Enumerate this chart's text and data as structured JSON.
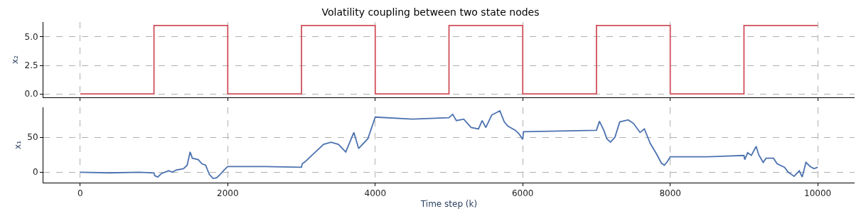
{
  "chart_data": [
    {
      "type": "step",
      "title": "Volatility coupling between two state nodes",
      "ylabel": "x₂",
      "x": [
        0,
        1000,
        2000,
        3000,
        4000,
        5000,
        6000,
        7000,
        8000,
        9000,
        10000
      ],
      "series": [
        {
          "color": "#d0505a",
          "values": [
            0,
            6,
            0,
            6,
            0,
            6,
            0,
            6,
            0,
            6,
            6
          ]
        }
      ],
      "xlim": [
        -500,
        10500
      ],
      "xticks": [
        0,
        2000,
        4000,
        6000,
        8000,
        10000
      ],
      "ylim": [
        -0.3,
        6.3
      ],
      "yticks": [
        {
          "value": 0,
          "label": "0.0"
        },
        2.5,
        {
          "value": 5,
          "label": "5.0"
        }
      ],
      "grid": true,
      "tick_labels": "y",
      "line_style": "solid"
    },
    {
      "type": "line",
      "xlabel": "Time step (k)",
      "ylabel": "x₁",
      "x": [
        0,
        400,
        800,
        1000,
        1010,
        1050,
        1100,
        1200,
        1250,
        1300,
        1400,
        1450,
        1490,
        1520,
        1600,
        1650,
        1700,
        1750,
        1800,
        1850,
        1900,
        1950,
        2000,
        2500,
        3000,
        3010,
        3050,
        3100,
        3200,
        3300,
        3400,
        3500,
        3600,
        3710,
        3775,
        3900,
        4000,
        4500,
        5000,
        5050,
        5100,
        5200,
        5300,
        5400,
        5450,
        5500,
        5580,
        5690,
        5750,
        5800,
        5850,
        5900,
        5950,
        6000,
        6010,
        6500,
        7000,
        7040,
        7100,
        7140,
        7190,
        7250,
        7315,
        7430,
        7500,
        7590,
        7650,
        7730,
        7815,
        7880,
        7920,
        7960,
        8000,
        8500,
        9000,
        9010,
        9050,
        9100,
        9165,
        9200,
        9260,
        9300,
        9400,
        9450,
        9550,
        9600,
        9680,
        9750,
        9790,
        9840,
        9900,
        9950,
        10000
      ],
      "series": [
        {
          "color": "#4c72b0",
          "values": [
            0,
            -1,
            0,
            -1,
            -5,
            -7,
            -2,
            2,
            0,
            3,
            5,
            10,
            29,
            20,
            18,
            12,
            10,
            -3,
            -9,
            -8,
            -3,
            3,
            8,
            8,
            7,
            12,
            15,
            20,
            30,
            40,
            43,
            40,
            29,
            57,
            34,
            48,
            79,
            76,
            78,
            83,
            74,
            76,
            64,
            62,
            74,
            64,
            82,
            88,
            72,
            66,
            63,
            60,
            55,
            47,
            58,
            59,
            60,
            73,
            60,
            48,
            43,
            50,
            72,
            75,
            70,
            57,
            62,
            41,
            26,
            13,
            10,
            15,
            22,
            22,
            24,
            18,
            28,
            24,
            37,
            25,
            14,
            20,
            20,
            12,
            7,
            0,
            -6,
            2,
            -7,
            14,
            8,
            5,
            7
          ]
        }
      ],
      "xlim": [
        -500,
        10500
      ],
      "xticks": [
        0,
        2000,
        4000,
        6000,
        8000,
        10000
      ],
      "ylim": [
        -15,
        93
      ],
      "yticks": [
        0,
        50
      ],
      "grid": true,
      "line_style": "solid"
    }
  ]
}
